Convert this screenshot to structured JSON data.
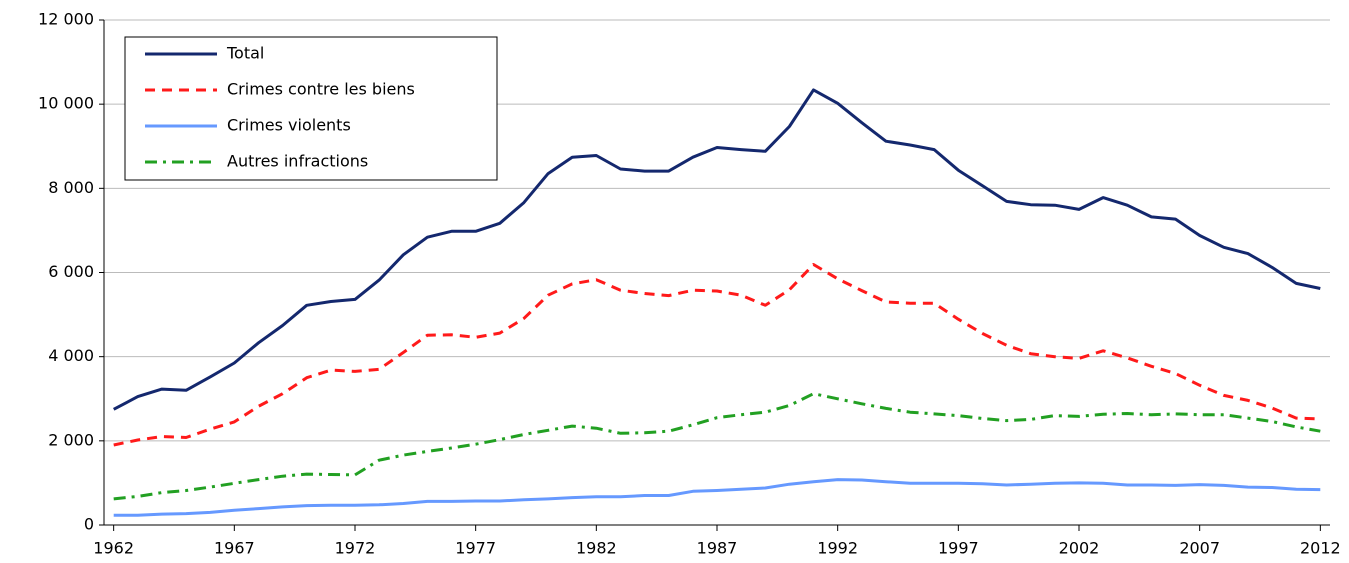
{
  "chart_data": {
    "type": "line",
    "x": [
      1962,
      1963,
      1964,
      1965,
      1966,
      1967,
      1968,
      1969,
      1970,
      1971,
      1972,
      1973,
      1974,
      1975,
      1976,
      1977,
      1978,
      1979,
      1980,
      1981,
      1982,
      1983,
      1984,
      1985,
      1986,
      1987,
      1988,
      1989,
      1990,
      1991,
      1992,
      1993,
      1994,
      1995,
      1996,
      1997,
      1998,
      1999,
      2000,
      2001,
      2002,
      2003,
      2004,
      2005,
      2006,
      2007,
      2008,
      2009,
      2010,
      2011,
      2012
    ],
    "series": [
      {
        "name": "Total",
        "color": "#14286e",
        "style": "solid",
        "values": [
          2750,
          3050,
          3230,
          3200,
          3520,
          3850,
          4330,
          4740,
          5220,
          5310,
          5360,
          5820,
          6420,
          6840,
          6980,
          6980,
          7170,
          7660,
          8350,
          8740,
          8780,
          8460,
          8410,
          8410,
          8740,
          8970,
          8920,
          8880,
          9470,
          10340,
          10020,
          9560,
          9120,
          9030,
          8920,
          8430,
          8060,
          7690,
          7610,
          7600,
          7500,
          7780,
          7600,
          7320,
          7270,
          6880,
          6600,
          6450,
          6120,
          5740,
          5620
        ]
      },
      {
        "name": "Crimes contre les biens",
        "color": "#ff1a1a",
        "style": "dashed",
        "values": [
          1900,
          2020,
          2100,
          2080,
          2280,
          2450,
          2820,
          3120,
          3500,
          3680,
          3650,
          3700,
          4100,
          4510,
          4520,
          4460,
          4560,
          4910,
          5460,
          5730,
          5830,
          5580,
          5500,
          5450,
          5580,
          5560,
          5460,
          5220,
          5590,
          6190,
          5850,
          5570,
          5300,
          5270,
          5270,
          4890,
          4550,
          4270,
          4070,
          4000,
          3960,
          4140,
          3970,
          3770,
          3600,
          3320,
          3080,
          2960,
          2780,
          2540,
          2520
        ]
      },
      {
        "name": "Crimes violents",
        "color": "#6699ff",
        "style": "solid",
        "values": [
          230,
          230,
          260,
          270,
          300,
          350,
          390,
          430,
          460,
          470,
          470,
          480,
          510,
          560,
          560,
          570,
          570,
          600,
          620,
          650,
          670,
          670,
          700,
          700,
          800,
          820,
          850,
          880,
          970,
          1030,
          1080,
          1070,
          1030,
          990,
          990,
          990,
          980,
          950,
          970,
          990,
          1000,
          990,
          950,
          950,
          940,
          960,
          940,
          900,
          890,
          850,
          840
        ]
      },
      {
        "name": "Autres infractions",
        "color": "#22a022",
        "style": "dashdot",
        "values": [
          620,
          680,
          770,
          820,
          900,
          990,
          1080,
          1160,
          1210,
          1200,
          1190,
          1540,
          1660,
          1750,
          1830,
          1920,
          2030,
          2150,
          2250,
          2350,
          2300,
          2180,
          2190,
          2230,
          2380,
          2550,
          2620,
          2680,
          2840,
          3120,
          3000,
          2880,
          2770,
          2680,
          2640,
          2600,
          2530,
          2480,
          2510,
          2600,
          2580,
          2630,
          2650,
          2620,
          2640,
          2620,
          2620,
          2540,
          2460,
          2330,
          2230
        ]
      }
    ],
    "xlim": [
      1961.6,
      2012.4
    ],
    "xticks": [
      1962,
      1967,
      1972,
      1977,
      1982,
      1987,
      1992,
      1997,
      2002,
      2007,
      2012
    ],
    "ylim": [
      0,
      12000
    ],
    "yticks": [
      0,
      {
        "value": 2000,
        "label": "2 000"
      },
      {
        "value": 4000,
        "label": "4 000"
      },
      {
        "value": 6000,
        "label": "6 000"
      },
      {
        "value": 8000,
        "label": "8 000"
      },
      {
        "value": 10000,
        "label": "10 000"
      },
      {
        "value": 12000,
        "label": "12 000"
      }
    ],
    "grid": true,
    "legend": "upper-left"
  }
}
